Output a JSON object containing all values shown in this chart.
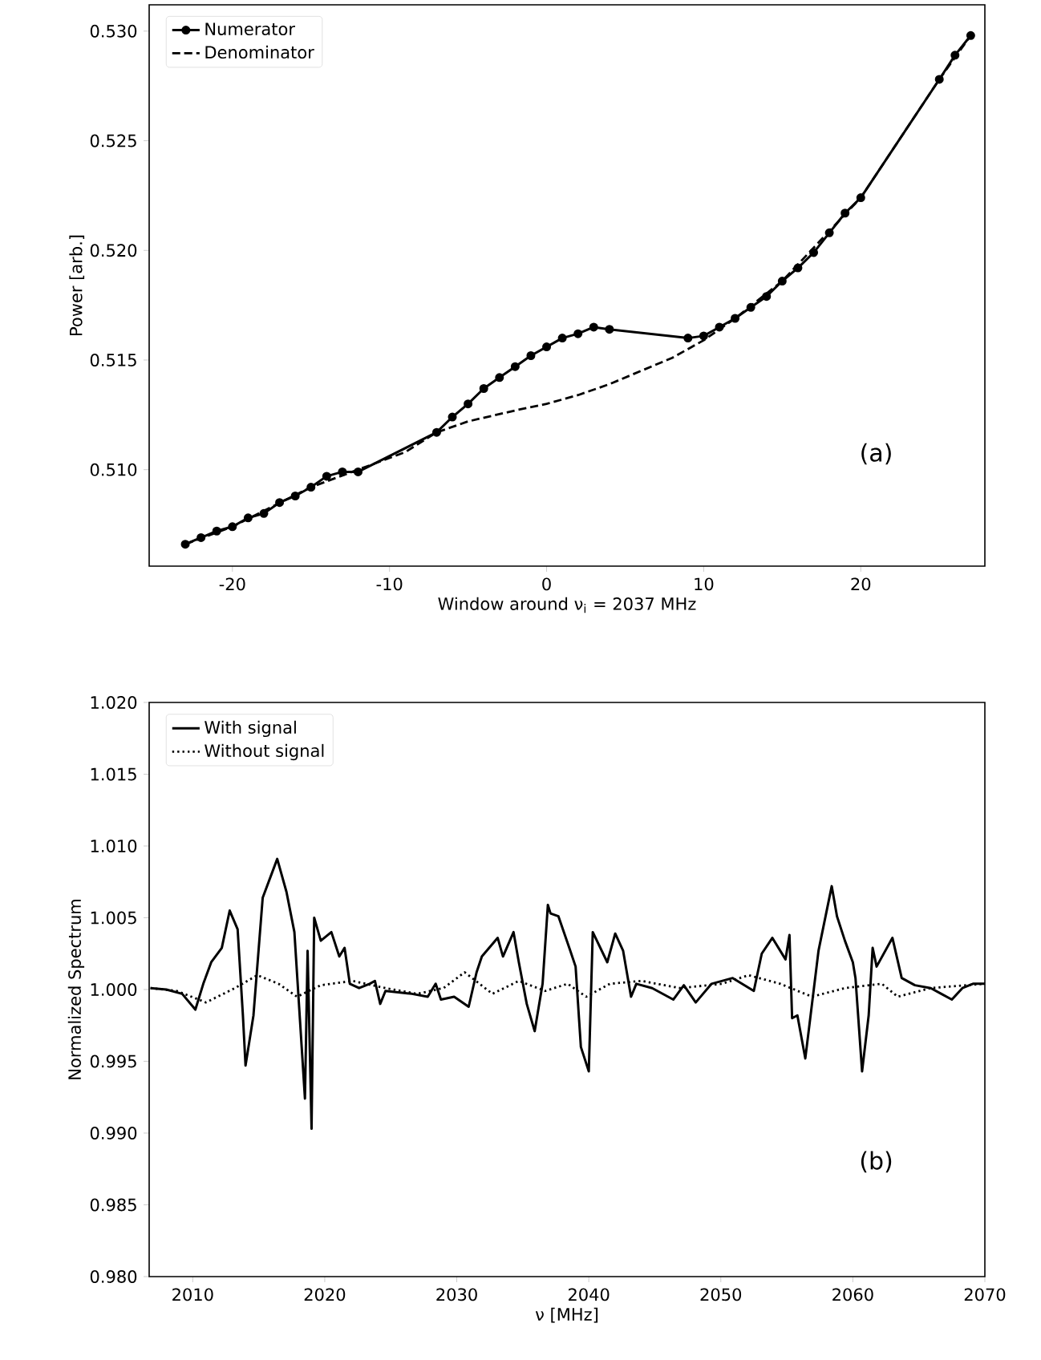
{
  "chart_data": [
    {
      "type": "line",
      "xlabel": "Window around ν$_{i}$ = 2037 MHz",
      "ylabel": "Power [arb.]",
      "xlim": [
        -25.3,
        27.9
      ],
      "ylim": [
        0.5056,
        0.5312
      ],
      "xticks": [
        -20,
        -10,
        0,
        10,
        20
      ],
      "yticks": [
        {
          "value": 0.51,
          "label": "0.510"
        },
        {
          "value": 0.515,
          "label": "0.515"
        },
        {
          "value": 0.52,
          "label": "0.520"
        },
        {
          "value": 0.525,
          "label": "0.525"
        },
        {
          "value": 0.53,
          "label": "0.530"
        }
      ],
      "legend": "top left",
      "annotations": [
        "(a)"
      ],
      "series": [
        {
          "name": "Numerator",
          "color": "#000000",
          "marker": "circle",
          "line_style": "solid",
          "x": [
            -23,
            -22,
            -21,
            -20,
            -19,
            -18,
            -17,
            -16,
            -15,
            -14,
            -13,
            -12,
            -7,
            -6,
            -5,
            -4,
            -3,
            -2,
            -1,
            0,
            1,
            2,
            3,
            4,
            9,
            10,
            11,
            12,
            13,
            14,
            15,
            16,
            17,
            18,
            19,
            20,
            25,
            26,
            27
          ],
          "values": [
            0.5066,
            0.5069,
            0.5072,
            0.5074,
            0.5078,
            0.508,
            0.5085,
            0.5088,
            0.5092,
            0.5097,
            0.5099,
            0.5099,
            0.5117,
            0.5124,
            0.513,
            0.5137,
            0.5142,
            0.5147,
            0.5152,
            0.5156,
            0.516,
            0.5162,
            0.5165,
            0.5164,
            0.516,
            0.5161,
            0.5165,
            0.5169,
            0.5174,
            0.5179,
            0.5186,
            0.5192,
            0.5199,
            0.5208,
            0.5217,
            0.5224,
            0.5278,
            0.5289,
            0.5298
          ]
        },
        {
          "name": "Denominator",
          "color": "#000000",
          "marker": "none",
          "line_style": "dashed",
          "x": [
            -23,
            -20,
            -15,
            -12,
            -9,
            -7,
            -5,
            -2,
            0,
            2,
            4,
            6,
            8,
            10,
            12,
            15,
            20,
            25,
            27
          ],
          "values": [
            0.5066,
            0.5074,
            0.5092,
            0.51,
            0.5108,
            0.5117,
            0.5122,
            0.5127,
            0.513,
            0.5134,
            0.5139,
            0.5145,
            0.5151,
            0.5159,
            0.5169,
            0.5186,
            0.5224,
            0.5278,
            0.5298
          ]
        }
      ]
    },
    {
      "type": "line",
      "xlabel": "ν [MHz]",
      "ylabel": "Normalized Spectrum",
      "xlim": [
        2006.7,
        2070
      ],
      "ylim": [
        0.98,
        1.02
      ],
      "xticks": [
        2010,
        2020,
        2030,
        2040,
        2050,
        2060,
        2070
      ],
      "yticks": [
        {
          "value": 0.98,
          "label": "0.980"
        },
        {
          "value": 0.985,
          "label": "0.985"
        },
        {
          "value": 0.99,
          "label": "0.990"
        },
        {
          "value": 0.995,
          "label": "0.995"
        },
        {
          "value": 1,
          "label": "1.000"
        },
        {
          "value": 1.005,
          "label": "1.005"
        },
        {
          "value": 1.01,
          "label": "1.010"
        },
        {
          "value": 1.015,
          "label": "1.015"
        },
        {
          "value": 1.02,
          "label": "1.020"
        }
      ],
      "legend": "top left",
      "annotations": [
        "(b)"
      ],
      "series": [
        {
          "name": "With signal",
          "color": "#000000",
          "line_style": "solid",
          "x": [
            2006.8,
            2008.0,
            2009.2,
            2010.2,
            2010.8,
            2011.4,
            2012.2,
            2012.8,
            2013.4,
            2013.8,
            2014.0,
            2014.6,
            2015.3,
            2016.4,
            2017.1,
            2017.7,
            2018.1,
            2018.5,
            2018.7,
            2019.0,
            2019.2,
            2019.7,
            2020.5,
            2021.1,
            2021.5,
            2021.9,
            2022.6,
            2023.4,
            2023.8,
            2024.2,
            2024.6,
            2026.6,
            2027.8,
            2028.4,
            2028.8,
            2029.8,
            2030.9,
            2031.5,
            2031.9,
            2033.1,
            2033.5,
            2034.3,
            2034.7,
            2035.3,
            2035.9,
            2036.5,
            2036.9,
            2037.1,
            2037.7,
            2038.6,
            2039.0,
            2039.4,
            2040.0,
            2040.3,
            2041.4,
            2042.0,
            2042.6,
            2043.2,
            2043.6,
            2044.8,
            2046.4,
            2047.2,
            2048.1,
            2049.3,
            2050.9,
            2052.5,
            2053.1,
            2053.9,
            2054.9,
            2055.2,
            2055.4,
            2055.8,
            2056.4,
            2057.4,
            2058.4,
            2058.8,
            2059.4,
            2060.0,
            2060.2,
            2060.7,
            2061.2,
            2061.5,
            2061.8,
            2063.0,
            2063.7,
            2064.7,
            2065.9,
            2066.7,
            2067.5,
            2068.3,
            2069.1,
            2070.0
          ],
          "values": [
            1.0001,
            1.0,
            0.9997,
            0.9986,
            1.0004,
            1.0019,
            1.0029,
            1.0055,
            1.0042,
            0.9982,
            0.9947,
            0.9982,
            1.0064,
            1.0091,
            1.0068,
            1.004,
            0.9982,
            0.9924,
            1.0027,
            0.9903,
            1.005,
            1.0034,
            1.004,
            1.0023,
            1.0029,
            1.0004,
            1.0001,
            1.0004,
            1.0006,
            0.999,
            0.9999,
            0.9997,
            0.9995,
            1.0004,
            0.9993,
            0.9995,
            0.9988,
            1.0012,
            1.0023,
            1.0036,
            1.0023,
            1.004,
            1.0019,
            0.999,
            0.9971,
            1.0004,
            1.0059,
            1.0053,
            1.0051,
            1.0027,
            1.0016,
            0.996,
            0.9943,
            1.004,
            1.0019,
            1.0039,
            1.0027,
            0.9995,
            1.0004,
            1.0001,
            0.9993,
            1.0003,
            0.9991,
            1.0004,
            1.0008,
            0.9999,
            1.0025,
            1.0036,
            1.0021,
            1.0038,
            0.998,
            0.9982,
            0.9952,
            1.0027,
            1.0072,
            1.0051,
            1.0034,
            1.0019,
            1.0008,
            0.9943,
            0.9982,
            1.0029,
            1.0016,
            1.0036,
            1.0008,
            1.0003,
            1.0001,
            0.9997,
            0.9993,
            1.0001,
            1.0004,
            1.0004
          ]
        },
        {
          "name": "Without signal",
          "color": "#000000",
          "line_style": "dotted",
          "x": [
            2006.8,
            2008.8,
            2011.0,
            2013.2,
            2014.9,
            2016.5,
            2017.9,
            2019.7,
            2022.1,
            2024.6,
            2027.0,
            2029.0,
            2030.6,
            2032.7,
            2034.7,
            2036.7,
            2038.4,
            2039.8,
            2041.6,
            2044.0,
            2046.9,
            2050.1,
            2052.1,
            2054.5,
            2056.9,
            2059.4,
            2062.2,
            2063.4,
            2065.9,
            2070.0
          ],
          "values": [
            1.0001,
            0.9999,
            0.9991,
            1.0001,
            1.001,
            1.0004,
            0.9995,
            1.0003,
            1.0006,
            1.0001,
            0.9997,
            1.0001,
            1.0012,
            0.9997,
            1.0006,
            0.9999,
            1.0004,
            0.9995,
            1.0004,
            1.0006,
            1.0001,
            1.0004,
            1.001,
            1.0004,
            0.9995,
            1.0001,
            1.0004,
            0.9995,
            1.0001,
            1.0004
          ]
        }
      ]
    }
  ]
}
